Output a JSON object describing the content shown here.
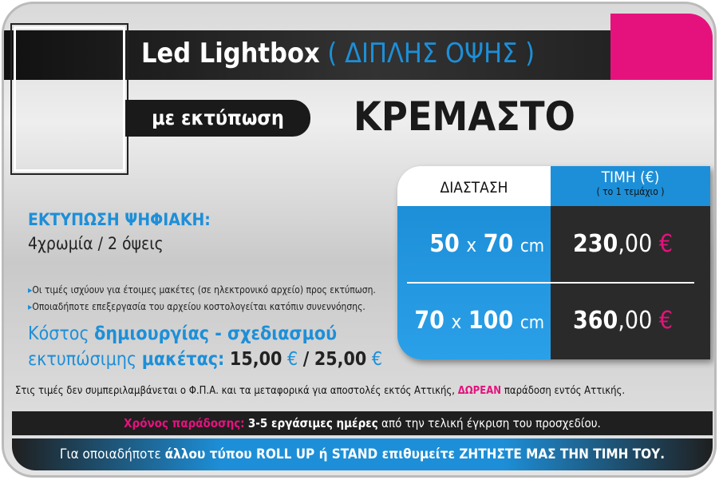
{
  "header": {
    "title": "Led Lightbox",
    "subtitle": "( ΔΙΠΛΗΣ ΟΨΗΣ )"
  },
  "badge": "με εκτύπωση",
  "heading": "ΚΡΕΜΑΣΤΟ",
  "print": {
    "title": "ΕΚΤΥΠΩΣΗ ΨΗΦΙΑΚΗ:",
    "detail": "4χρωμία / 2 όψεις"
  },
  "notes": [
    "Οι τιμές ισχύουν για έτοιμες μακέτες (σε ηλεκτρονικό αρχείο) προς εκτύπωση.",
    "Οποιαδήποτε επεξεργασία του αρχείου κοστολογείται κατόπιν συνεννόησης."
  ],
  "design_cost": {
    "line1": [
      "Κόστος",
      "δημιουργίας - σχεδιασμού"
    ],
    "line2": [
      "εκτυπώσιμης",
      "μακέτας:",
      "15,00",
      "€",
      "/",
      "25,00",
      "€"
    ]
  },
  "table": {
    "headers": [
      "ΔΙΑΣΤΑΣΗ",
      "ΤΙΜΗ (€)",
      "( το 1 τεμάχιο )"
    ],
    "rows": [
      {
        "size": [
          "50",
          "x",
          "70",
          "cm"
        ],
        "price": [
          "230",
          ",00",
          "€"
        ]
      },
      {
        "size": [
          "70",
          "x",
          "100",
          "cm"
        ],
        "price": [
          "360",
          ",00",
          "€"
        ]
      }
    ]
  },
  "footer": {
    "vat": [
      "Στις τιμές δεν συμπεριλαμβάνεται ο Φ.Π.Α. και τα μεταφορικά για αποστολές εκτός Αττικής,",
      "ΔΩΡΕΑΝ",
      "παράδοση εντός Αττικής."
    ],
    "delivery": [
      "Χρόνος παράδοσης:",
      "3-5 εργάσιμες ημέρες",
      "από την τελική έγκριση του προσχεδίου."
    ],
    "other": [
      "Για οποιαδήποτε",
      "άλλου τύπου ROLL UP ή STAND επιθυμείτε ΖΗΤΗΣΤΕ ΜΑΣ ΤΗΝ ΤΙΜΗ ΤΟΥ."
    ]
  }
}
